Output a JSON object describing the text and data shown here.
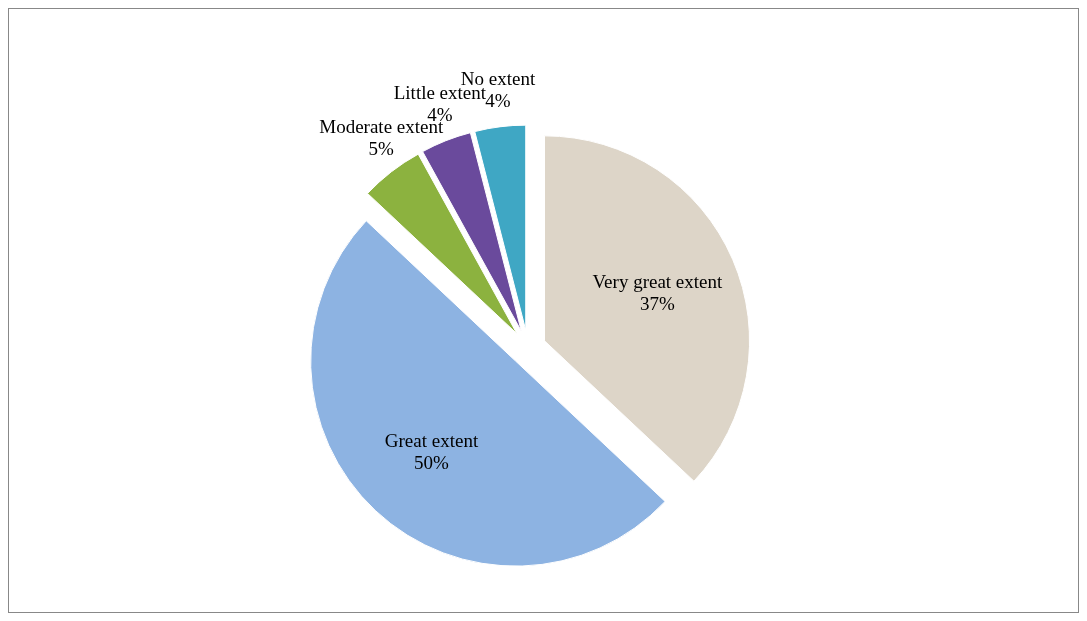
{
  "chart_data": {
    "type": "pie",
    "categories": [
      "Very great extent",
      "Great extent",
      "Moderate extent",
      "Little extent",
      "No extent"
    ],
    "values": [
      37,
      50,
      5,
      4,
      4
    ],
    "colors": [
      "#ddd5c8",
      "#8db3e2",
      "#8cb23f",
      "#6a4a9c",
      "#3fa7c4"
    ],
    "value_labels": [
      "37%",
      "50%",
      "5%",
      "4%",
      "4%"
    ]
  }
}
